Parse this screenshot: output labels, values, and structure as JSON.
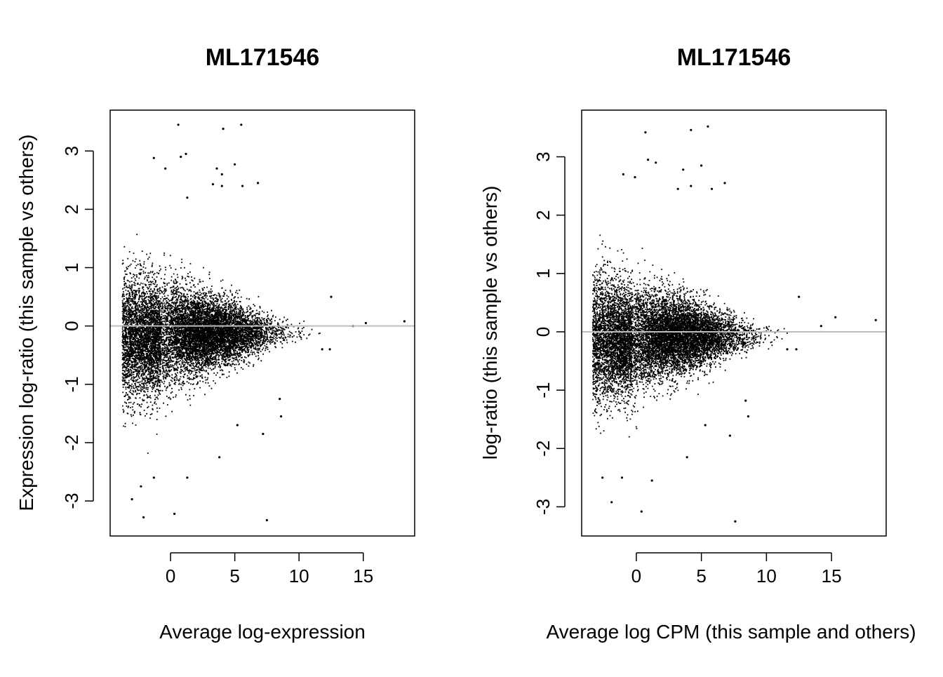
{
  "chart_data": [
    {
      "type": "scatter",
      "title": "ML171546",
      "xlabel": "Average log-expression",
      "ylabel": "Expression log-ratio (this sample vs others)",
      "xlim": [
        -4.7,
        19.0
      ],
      "ylim": [
        -3.6,
        3.7
      ],
      "xticks": [
        "0",
        "5",
        "10",
        "15"
      ],
      "yticks": [
        "-3",
        "-2",
        "-1",
        "0",
        "1",
        "2",
        "3"
      ],
      "reference_line": {
        "y": 0,
        "color": "#bebebe"
      },
      "point_color": "#000000",
      "grid": false,
      "legend": "none",
      "cloud": {
        "n_points": 11000,
        "x_center": 2.5,
        "x_min": -3.8,
        "x_max": 12.0,
        "y_center": -0.1
      },
      "outliers": [
        [
          0.6,
          3.45
        ],
        [
          4.1,
          3.38
        ],
        [
          5.5,
          3.45
        ],
        [
          1.2,
          2.95
        ],
        [
          0.8,
          2.9
        ],
        [
          3.6,
          2.7
        ],
        [
          4.0,
          2.6
        ],
        [
          5.0,
          2.77
        ],
        [
          -1.3,
          2.88
        ],
        [
          -0.4,
          2.7
        ],
        [
          6.8,
          2.45
        ],
        [
          5.6,
          2.4
        ],
        [
          4.0,
          2.4
        ],
        [
          3.3,
          2.43
        ],
        [
          1.3,
          2.2
        ],
        [
          12.5,
          0.5
        ],
        [
          14.2,
          0.0
        ],
        [
          15.2,
          0.05
        ],
        [
          18.2,
          0.08
        ],
        [
          7.5,
          -3.33
        ],
        [
          0.3,
          -3.22
        ],
        [
          -2.1,
          -3.28
        ],
        [
          -3.0,
          -2.97
        ],
        [
          -2.3,
          -2.75
        ],
        [
          -1.3,
          -2.6
        ],
        [
          1.3,
          -2.6
        ],
        [
          3.8,
          -2.25
        ],
        [
          8.6,
          -1.55
        ],
        [
          8.5,
          -1.25
        ],
        [
          5.2,
          -1.7
        ],
        [
          7.2,
          -1.85
        ],
        [
          11.8,
          -0.4
        ],
        [
          12.4,
          -0.4
        ]
      ]
    },
    {
      "type": "scatter",
      "title": "ML171546",
      "xlabel": "Average log CPM (this sample and others)",
      "ylabel": "log-ratio (this sample vs others)",
      "xlim": [
        -4.2,
        19.2
      ],
      "ylim": [
        -3.5,
        3.8
      ],
      "xticks": [
        "0",
        "5",
        "10",
        "15"
      ],
      "yticks": [
        "-3",
        "-2",
        "-1",
        "0",
        "1",
        "2",
        "3"
      ],
      "reference_line": {
        "y": 0,
        "color": "#bebebe"
      },
      "point_color": "#000000",
      "grid": false,
      "legend": "none",
      "cloud": {
        "n_points": 11000,
        "x_center": 2.8,
        "x_min": -3.4,
        "x_max": 12.0,
        "y_center": -0.05
      },
      "outliers": [
        [
          0.7,
          3.42
        ],
        [
          4.2,
          3.46
        ],
        [
          5.5,
          3.52
        ],
        [
          0.9,
          2.95
        ],
        [
          1.5,
          2.9
        ],
        [
          3.6,
          2.78
        ],
        [
          5.0,
          2.85
        ],
        [
          -1.0,
          2.7
        ],
        [
          -0.1,
          2.65
        ],
        [
          6.8,
          2.55
        ],
        [
          5.8,
          2.45
        ],
        [
          4.2,
          2.5
        ],
        [
          3.2,
          2.45
        ],
        [
          12.5,
          0.6
        ],
        [
          14.2,
          0.1
        ],
        [
          15.3,
          0.25
        ],
        [
          18.4,
          0.2
        ],
        [
          7.6,
          -3.25
        ],
        [
          0.4,
          -3.08
        ],
        [
          -1.9,
          -2.92
        ],
        [
          -2.6,
          -2.5
        ],
        [
          -1.1,
          -2.5
        ],
        [
          1.2,
          -2.55
        ],
        [
          3.9,
          -2.15
        ],
        [
          8.6,
          -1.45
        ],
        [
          8.4,
          -1.18
        ],
        [
          5.3,
          -1.6
        ],
        [
          7.2,
          -1.78
        ],
        [
          11.6,
          -0.3
        ],
        [
          12.3,
          -0.3
        ]
      ]
    }
  ]
}
